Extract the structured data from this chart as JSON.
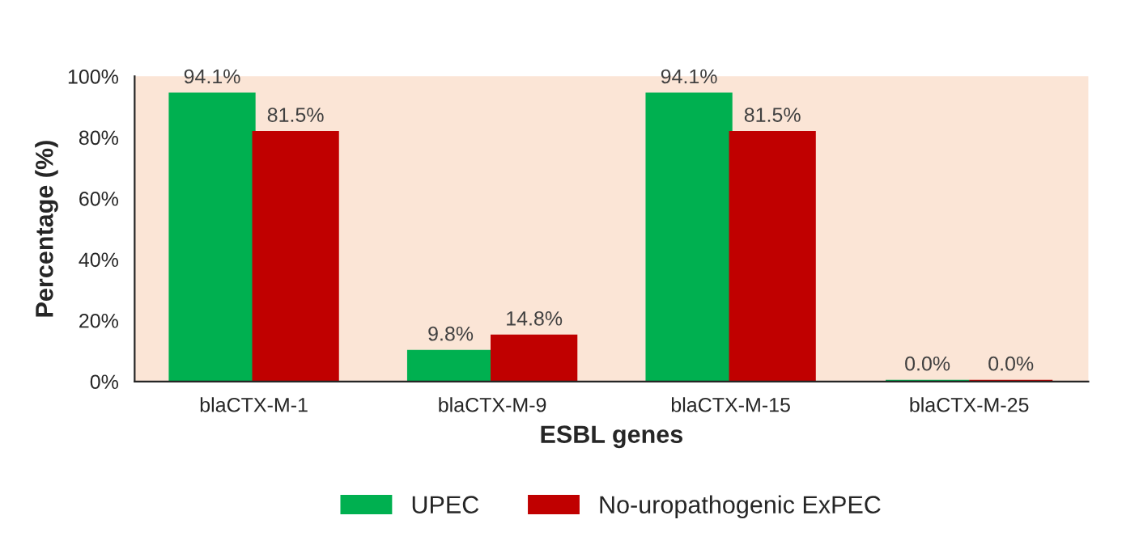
{
  "chart_data": {
    "type": "bar",
    "xlabel": "ESBL genes",
    "ylabel": "Percentage (%)",
    "categories": [
      "blaCTX-M-1",
      "blaCTX-M-9",
      "blaCTX-M-15",
      "blaCTX-M-25"
    ],
    "series": [
      {
        "name": "UPEC",
        "color": "#00b050",
        "values": [
          94.1,
          9.8,
          94.1,
          0.0
        ],
        "value_labels": [
          "94.1%",
          "9.8%",
          "94.1%",
          "0.0%"
        ]
      },
      {
        "name": "No-uropathogenic ExPEC",
        "color": "#c00000",
        "values": [
          81.5,
          14.8,
          81.5,
          0.0
        ],
        "value_labels": [
          "81.5%",
          "14.8%",
          "81.5%",
          "0.0%"
        ]
      }
    ],
    "ylim": [
      0,
      100
    ],
    "yticks": [
      {
        "value": 0,
        "label": "0%"
      },
      {
        "value": 20,
        "label": "20%"
      },
      {
        "value": 40,
        "label": "40%"
      },
      {
        "value": 60,
        "label": "60%"
      },
      {
        "value": 80,
        "label": "80%"
      },
      {
        "value": 100,
        "label": "100%"
      }
    ],
    "grid": false,
    "legend": "bottom"
  }
}
